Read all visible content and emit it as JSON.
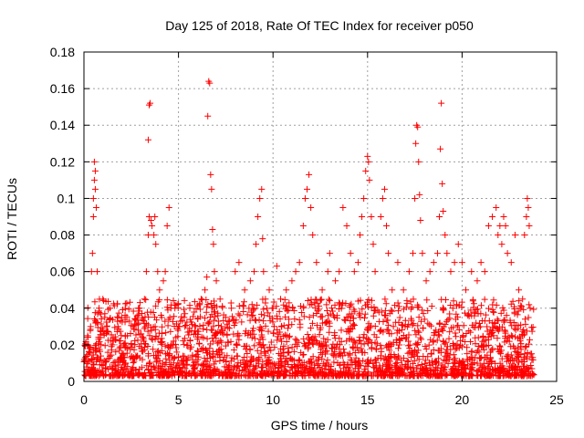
{
  "chart_data": {
    "type": "scatter",
    "title": "Day 125 of 2018, Rate Of TEC Index for receiver p050",
    "xlabel": "GPS time / hours",
    "ylabel": "ROTI / TECUs",
    "xlim": [
      0,
      25
    ],
    "ylim": [
      0,
      0.18
    ],
    "xticks": [
      0,
      5,
      10,
      15,
      20,
      25
    ],
    "xtick_labels": [
      "0",
      "5",
      "10",
      "15",
      "20",
      "25"
    ],
    "yticks": [
      0,
      0.02,
      0.04,
      0.06,
      0.08,
      0.1,
      0.12,
      0.14,
      0.16,
      0.18
    ],
    "ytick_labels": [
      "0",
      "0.02",
      "0.04",
      "0.06",
      "0.08",
      "0.1",
      "0.12",
      "0.14",
      "0.16",
      "0.18"
    ],
    "grid": true,
    "marker": "+",
    "color": "#ff0000",
    "series": [
      {
        "name": "ROTI",
        "points": [
          [
            0.1,
            0.012
          ],
          [
            0.2,
            0.025
          ],
          [
            0.3,
            0.018
          ],
          [
            0.35,
            0.03
          ],
          [
            0.4,
            0.06
          ],
          [
            0.45,
            0.07
          ],
          [
            0.5,
            0.09
          ],
          [
            0.5,
            0.1
          ],
          [
            0.55,
            0.11
          ],
          [
            0.55,
            0.12
          ],
          [
            0.6,
            0.105
          ],
          [
            0.6,
            0.115
          ],
          [
            0.65,
            0.095
          ],
          [
            0.7,
            0.06
          ],
          [
            0.8,
            0.04
          ],
          [
            0.9,
            0.02
          ],
          [
            1.0,
            0.045
          ],
          [
            1.1,
            0.035
          ],
          [
            1.2,
            0.03
          ],
          [
            1.5,
            0.02
          ],
          [
            1.8,
            0.03
          ],
          [
            2.0,
            0.035
          ],
          [
            2.3,
            0.025
          ],
          [
            2.6,
            0.03
          ],
          [
            2.9,
            0.04
          ],
          [
            3.2,
            0.045
          ],
          [
            3.3,
            0.06
          ],
          [
            3.4,
            0.08
          ],
          [
            3.45,
            0.09
          ],
          [
            3.5,
            0.152
          ],
          [
            3.45,
            0.151
          ],
          [
            3.4,
            0.132
          ],
          [
            3.55,
            0.088
          ],
          [
            3.6,
            0.085
          ],
          [
            3.7,
            0.08
          ],
          [
            3.75,
            0.09
          ],
          [
            3.8,
            0.075
          ],
          [
            3.9,
            0.06
          ],
          [
            4.0,
            0.05
          ],
          [
            4.2,
            0.055
          ],
          [
            4.3,
            0.06
          ],
          [
            4.4,
            0.085
          ],
          [
            4.5,
            0.095
          ],
          [
            4.6,
            0.04
          ],
          [
            5.0,
            0.03
          ],
          [
            5.3,
            0.035
          ],
          [
            5.6,
            0.04
          ],
          [
            5.9,
            0.03
          ],
          [
            6.2,
            0.045
          ],
          [
            6.4,
            0.05
          ],
          [
            6.5,
            0.057
          ],
          [
            6.55,
            0.145
          ],
          [
            6.6,
            0.164
          ],
          [
            6.65,
            0.163
          ],
          [
            6.7,
            0.113
          ],
          [
            6.75,
            0.105
          ],
          [
            6.8,
            0.083
          ],
          [
            6.85,
            0.075
          ],
          [
            6.9,
            0.06
          ],
          [
            7.0,
            0.055
          ],
          [
            7.2,
            0.045
          ],
          [
            7.5,
            0.035
          ],
          [
            7.8,
            0.04
          ],
          [
            8.0,
            0.06
          ],
          [
            8.2,
            0.065
          ],
          [
            8.5,
            0.05
          ],
          [
            8.8,
            0.055
          ],
          [
            9.0,
            0.06
          ],
          [
            9.1,
            0.075
          ],
          [
            9.2,
            0.09
          ],
          [
            9.3,
            0.1
          ],
          [
            9.4,
            0.105
          ],
          [
            9.45,
            0.078
          ],
          [
            9.5,
            0.06
          ],
          [
            9.6,
            0.045
          ],
          [
            9.8,
            0.05
          ],
          [
            10.0,
            0.04
          ],
          [
            10.2,
            0.063
          ],
          [
            10.4,
            0.045
          ],
          [
            10.7,
            0.05
          ],
          [
            11.0,
            0.055
          ],
          [
            11.2,
            0.06
          ],
          [
            11.4,
            0.065
          ],
          [
            11.6,
            0.085
          ],
          [
            11.7,
            0.1
          ],
          [
            11.8,
            0.105
          ],
          [
            11.9,
            0.113
          ],
          [
            12.0,
            0.095
          ],
          [
            12.1,
            0.08
          ],
          [
            12.3,
            0.065
          ],
          [
            12.6,
            0.05
          ],
          [
            12.9,
            0.06
          ],
          [
            13.0,
            0.07
          ],
          [
            13.3,
            0.055
          ],
          [
            13.5,
            0.06
          ],
          [
            13.7,
            0.095
          ],
          [
            13.9,
            0.085
          ],
          [
            14.1,
            0.07
          ],
          [
            14.3,
            0.06
          ],
          [
            14.5,
            0.065
          ],
          [
            14.6,
            0.08
          ],
          [
            14.7,
            0.09
          ],
          [
            14.8,
            0.1
          ],
          [
            14.9,
            0.115
          ],
          [
            15.0,
            0.123
          ],
          [
            15.05,
            0.12
          ],
          [
            15.1,
            0.11
          ],
          [
            15.2,
            0.09
          ],
          [
            15.3,
            0.075
          ],
          [
            15.4,
            0.06
          ],
          [
            15.7,
            0.09
          ],
          [
            15.8,
            0.1
          ],
          [
            15.9,
            0.105
          ],
          [
            16.0,
            0.085
          ],
          [
            16.1,
            0.07
          ],
          [
            16.3,
            0.05
          ],
          [
            16.6,
            0.065
          ],
          [
            16.9,
            0.05
          ],
          [
            17.2,
            0.06
          ],
          [
            17.4,
            0.07
          ],
          [
            17.5,
            0.1
          ],
          [
            17.55,
            0.13
          ],
          [
            17.6,
            0.14
          ],
          [
            17.65,
            0.139
          ],
          [
            17.7,
            0.12
          ],
          [
            17.75,
            0.102
          ],
          [
            17.8,
            0.088
          ],
          [
            17.9,
            0.07
          ],
          [
            18.1,
            0.055
          ],
          [
            18.3,
            0.06
          ],
          [
            18.5,
            0.065
          ],
          [
            18.7,
            0.07
          ],
          [
            18.8,
            0.09
          ],
          [
            18.85,
            0.127
          ],
          [
            18.9,
            0.152
          ],
          [
            18.95,
            0.108
          ],
          [
            19.0,
            0.093
          ],
          [
            19.1,
            0.08
          ],
          [
            19.2,
            0.07
          ],
          [
            19.4,
            0.06
          ],
          [
            19.6,
            0.065
          ],
          [
            19.8,
            0.075
          ],
          [
            20.0,
            0.065
          ],
          [
            20.2,
            0.05
          ],
          [
            20.5,
            0.06
          ],
          [
            20.8,
            0.055
          ],
          [
            21.0,
            0.065
          ],
          [
            21.2,
            0.06
          ],
          [
            21.4,
            0.085
          ],
          [
            21.6,
            0.09
          ],
          [
            21.8,
            0.095
          ],
          [
            21.9,
            0.08
          ],
          [
            22.0,
            0.085
          ],
          [
            22.1,
            0.075
          ],
          [
            22.2,
            0.09
          ],
          [
            22.3,
            0.085
          ],
          [
            22.4,
            0.07
          ],
          [
            22.6,
            0.065
          ],
          [
            22.8,
            0.08
          ],
          [
            23.0,
            0.05
          ],
          [
            23.2,
            0.045
          ],
          [
            23.3,
            0.08
          ],
          [
            23.4,
            0.09
          ],
          [
            23.45,
            0.1
          ],
          [
            23.5,
            0.095
          ],
          [
            23.55,
            0.085
          ],
          [
            23.6,
            0.04
          ]
        ],
        "dense_band": {
          "x_range": [
            0,
            23.8
          ],
          "y_range": [
            0.003,
            0.045
          ],
          "typical_center": 0.012
        }
      }
    ]
  }
}
